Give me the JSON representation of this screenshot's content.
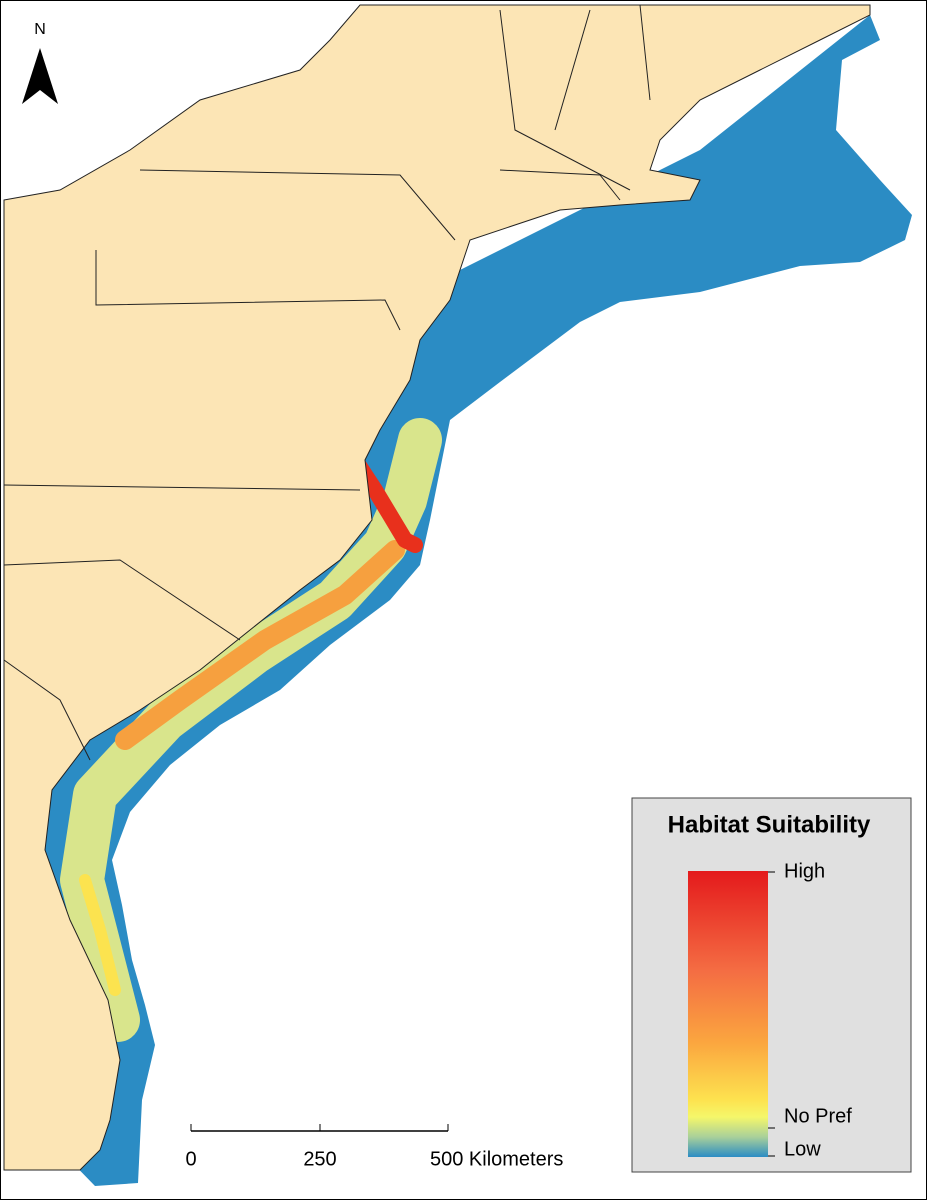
{
  "north_arrow": {
    "label": "N"
  },
  "legend": {
    "title": "Habitat Suitability",
    "labels": [
      "High",
      "No Pref",
      "Low"
    ]
  },
  "scale_bar": {
    "labels": [
      "0",
      "250",
      "500 Kilometers"
    ]
  }
}
